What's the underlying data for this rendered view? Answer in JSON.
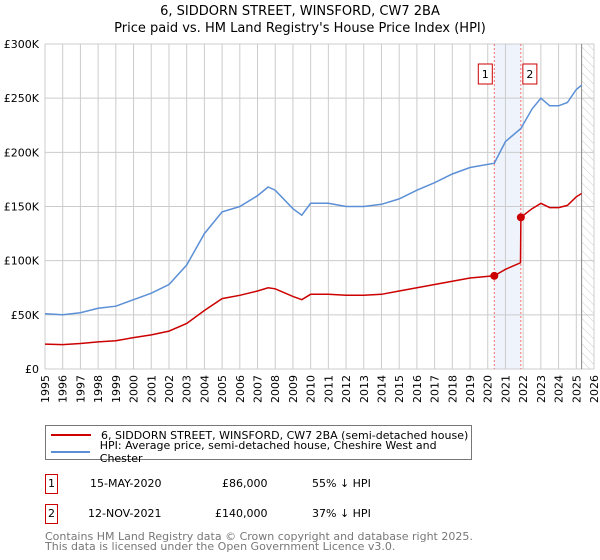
{
  "title_line1": "6, SIDDORN STREET, WINSFORD, CW7 2BA",
  "title_line2": "Price paid vs. HM Land Registry's House Price Index (HPI)",
  "chart_data": {
    "type": "line",
    "title": "6, SIDDORN STREET, WINSFORD, CW7 2BA — Price paid vs. HM Land Registry's House Price Index (HPI)",
    "xlim": [
      1995,
      2026
    ],
    "ylim": [
      0,
      300000
    ],
    "x_ticks": [
      "1995",
      "1996",
      "1997",
      "1998",
      "1999",
      "2000",
      "2001",
      "2002",
      "2003",
      "2004",
      "2005",
      "2006",
      "2007",
      "2008",
      "2009",
      "2010",
      "2011",
      "2012",
      "2013",
      "2014",
      "2015",
      "2016",
      "2017",
      "2018",
      "2019",
      "2020",
      "2021",
      "2022",
      "2023",
      "2024",
      "2025",
      "2026"
    ],
    "y_ticks": [
      {
        "v": 0,
        "label": "£0"
      },
      {
        "v": 50000,
        "label": "£50K"
      },
      {
        "v": 100000,
        "label": "£100K"
      },
      {
        "v": 150000,
        "label": "£150K"
      },
      {
        "v": 200000,
        "label": "£200K"
      },
      {
        "v": 250000,
        "label": "£250K"
      },
      {
        "v": 300000,
        "label": "£300K"
      }
    ],
    "grid": true,
    "series": [
      {
        "name": "6, SIDDORN STREET, WINSFORD, CW7 2BA (semi-detached house)",
        "color": "#cc0000",
        "x": [
          1995,
          1996,
          1997,
          1998,
          1999,
          2000,
          2001,
          2002,
          2003,
          2004,
          2005,
          2006,
          2007,
          2007.6,
          2008,
          2009,
          2009.5,
          2010,
          2011,
          2012,
          2013,
          2014,
          2015,
          2016,
          2017,
          2018,
          2019,
          2020.37,
          2021,
          2021.85,
          2021.87,
          2022.5,
          2023,
          2023.5,
          2024,
          2024.5,
          2025,
          2025.3
        ],
        "y": [
          23000,
          22500,
          23500,
          25000,
          26000,
          29000,
          31500,
          35000,
          42000,
          54000,
          65000,
          68000,
          72000,
          75000,
          74000,
          67000,
          64000,
          69000,
          69000,
          68000,
          68000,
          69000,
          72000,
          75000,
          78000,
          81000,
          84000,
          86000,
          92000,
          98000,
          140000,
          148000,
          153000,
          149000,
          149000,
          151000,
          159000,
          162000
        ]
      },
      {
        "name": "HPI: Average price, semi-detached house, Cheshire West and Chester",
        "color": "#5b8fd6",
        "x": [
          1995,
          1996,
          1997,
          1998,
          1999,
          2000,
          2001,
          2002,
          2003,
          2004,
          2005,
          2006,
          2007,
          2007.6,
          2008,
          2009,
          2009.5,
          2010,
          2011,
          2012,
          2013,
          2014,
          2015,
          2016,
          2017,
          2018,
          2019,
          2020.37,
          2021,
          2021.87,
          2022.5,
          2023,
          2023.5,
          2024,
          2024.5,
          2025,
          2025.3
        ],
        "y": [
          51000,
          50000,
          52000,
          56000,
          58000,
          64000,
          70000,
          78000,
          96000,
          125000,
          145000,
          150000,
          160000,
          168000,
          165000,
          148000,
          142000,
          153000,
          153000,
          150000,
          150000,
          152000,
          157000,
          165000,
          172000,
          180000,
          186000,
          190000,
          210000,
          222000,
          240000,
          250000,
          243000,
          243000,
          246000,
          258000,
          262000
        ]
      }
    ],
    "legend_placement": "below",
    "sales": [
      {
        "num": "1",
        "x": 2020.37,
        "y": 86000,
        "date": "15-MAY-2020",
        "price": "£86,000",
        "delta": "55% ↓ HPI"
      },
      {
        "num": "2",
        "x": 2021.87,
        "y": 140000,
        "date": "12-NOV-2021",
        "price": "£140,000",
        "delta": "37% ↓ HPI"
      }
    ],
    "forecast_start": 2025.3
  },
  "footer_line1": "Contains HM Land Registry data © Crown copyright and database right 2025.",
  "footer_line2": "This data is licensed under the Open Government Licence v3.0."
}
